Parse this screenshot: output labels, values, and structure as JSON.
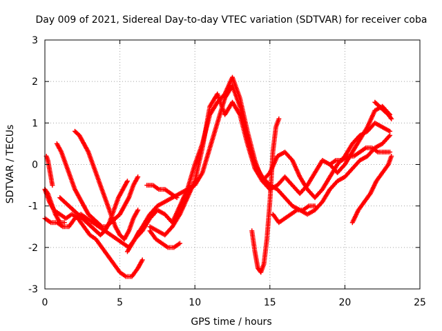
{
  "chart_data": {
    "type": "scatter",
    "title": "Day 009 of 2021, Sidereal Day-to-day VTEC variation (SDTVAR) for receiver coba",
    "xlabel": "GPS time / hours",
    "ylabel": "SDTVAR / TECUs",
    "xlim": [
      0,
      25
    ],
    "ylim": [
      -3,
      3
    ],
    "xticks": [
      "0",
      "5",
      "10",
      "15",
      "20",
      "25"
    ],
    "yticks": [
      "-3",
      "-2",
      "-1",
      "0",
      "1",
      "2",
      "3"
    ],
    "grid": true,
    "marker": "+",
    "color": "#ff0000",
    "series": [
      {
        "x": [
          0.0,
          0.3,
          0.6,
          1.0,
          1.4,
          1.8,
          2.2,
          2.6,
          3.0,
          3.4,
          3.8,
          4.2,
          4.6,
          5.0,
          5.4,
          5.8,
          6.2,
          6.5
        ],
        "y": [
          -0.6,
          -0.9,
          -1.1,
          -1.2,
          -1.3,
          -1.2,
          -1.3,
          -1.5,
          -1.7,
          -1.8,
          -2.0,
          -2.2,
          -2.4,
          -2.6,
          -2.7,
          -2.7,
          -2.5,
          -2.3
        ]
      },
      {
        "x": [
          0.0,
          0.4,
          0.8,
          1.2,
          1.6,
          2.0,
          2.4,
          2.8,
          3.2,
          3.6,
          4.0,
          4.4,
          4.8,
          5.2,
          5.6,
          6.0,
          6.3
        ],
        "y": [
          -1.3,
          -1.4,
          -1.4,
          -1.5,
          -1.5,
          -1.3,
          -1.2,
          -1.3,
          -1.4,
          -1.5,
          -1.6,
          -1.7,
          -1.8,
          -1.9,
          -2.0,
          -1.8,
          -1.6
        ]
      },
      {
        "x": [
          0.0,
          0.2,
          0.4,
          0.7,
          1.0,
          1.3
        ],
        "y": [
          -0.6,
          -0.7,
          -0.9,
          -1.2,
          -1.4,
          -1.4
        ]
      },
      {
        "x": [
          0.1,
          0.2,
          0.3,
          0.4,
          0.5
        ],
        "y": [
          0.2,
          0.1,
          -0.1,
          -0.3,
          -0.5
        ]
      },
      {
        "x": [
          0.8,
          1.1,
          1.4,
          1.7,
          2.0,
          2.3,
          2.6,
          2.9,
          3.2,
          3.5,
          3.8,
          4.1,
          4.4,
          4.7,
          5.0,
          5.3,
          5.6,
          5.9,
          6.2
        ],
        "y": [
          0.5,
          0.3,
          0.0,
          -0.3,
          -0.6,
          -0.8,
          -1.0,
          -1.2,
          -1.3,
          -1.4,
          -1.5,
          -1.5,
          -1.4,
          -1.3,
          -1.2,
          -1.0,
          -0.8,
          -0.5,
          -0.3
        ]
      },
      {
        "x": [
          2.0,
          2.3,
          2.6,
          2.9,
          3.2,
          3.5,
          3.8,
          4.1,
          4.4,
          4.7,
          5.0,
          5.3,
          5.6,
          5.9,
          6.2
        ],
        "y": [
          0.8,
          0.7,
          0.5,
          0.3,
          0.0,
          -0.3,
          -0.6,
          -0.9,
          -1.2,
          -1.5,
          -1.7,
          -1.8,
          -1.6,
          -1.3,
          -1.1
        ]
      },
      {
        "x": [
          1.0,
          1.3,
          1.6,
          1.9,
          2.2,
          2.5,
          2.8,
          3.1,
          3.4,
          3.7,
          4.0,
          4.3,
          4.6,
          4.9,
          5.2,
          5.5
        ],
        "y": [
          -0.8,
          -0.9,
          -1.0,
          -1.1,
          -1.2,
          -1.3,
          -1.4,
          -1.5,
          -1.6,
          -1.7,
          -1.6,
          -1.4,
          -1.1,
          -0.8,
          -0.6,
          -0.4
        ]
      },
      {
        "x": [
          5.5,
          6.0,
          6.5,
          7.0,
          7.5,
          8.0,
          8.5,
          9.0,
          9.5,
          10.0,
          10.5,
          11.0,
          11.5,
          12.0,
          12.5,
          13.0,
          13.5,
          14.0,
          14.5,
          15.0,
          15.5,
          16.0,
          16.5,
          17.0,
          17.5,
          18.0,
          18.5,
          19.0,
          19.5,
          20.0,
          20.5,
          21.0,
          21.5,
          22.0,
          22.5,
          23.0
        ],
        "y": [
          -2.1,
          -1.8,
          -1.5,
          -1.2,
          -1.0,
          -0.9,
          -0.8,
          -0.7,
          -0.6,
          -0.5,
          -0.2,
          0.4,
          1.0,
          1.6,
          1.9,
          1.4,
          0.6,
          0.0,
          -0.3,
          -0.5,
          -0.6,
          -0.8,
          -1.0,
          -1.1,
          -1.2,
          -1.1,
          -0.9,
          -0.6,
          -0.4,
          -0.3,
          -0.1,
          0.1,
          0.2,
          0.4,
          0.5,
          0.7
        ]
      },
      {
        "x": [
          6.0,
          6.5,
          7.0,
          7.5,
          8.0,
          8.5,
          9.0,
          9.5,
          10.0,
          10.5,
          11.0,
          11.5,
          12.0,
          12.5,
          13.0,
          13.5,
          14.0,
          14.5,
          15.0,
          15.5,
          16.0,
          16.5,
          17.0,
          17.5,
          18.0,
          18.5,
          19.0,
          19.5,
          20.0,
          20.5,
          21.0,
          21.5,
          22.0,
          22.5,
          23.0
        ],
        "y": [
          -1.8,
          -1.6,
          -1.3,
          -1.1,
          -1.2,
          -1.4,
          -1.0,
          -0.6,
          0.0,
          0.5,
          1.2,
          1.5,
          1.7,
          2.1,
          1.6,
          0.8,
          0.1,
          -0.4,
          -0.2,
          0.2,
          0.3,
          0.1,
          -0.3,
          -0.6,
          -0.8,
          -0.6,
          -0.3,
          0.0,
          0.2,
          0.5,
          0.7,
          0.8,
          1.0,
          0.9,
          0.8
        ]
      },
      {
        "x": [
          7.0,
          7.5,
          8.0,
          8.5,
          9.0,
          9.5,
          10.0,
          10.5,
          11.0,
          11.5,
          12.0,
          12.5,
          13.0,
          13.5,
          14.0,
          14.5,
          15.0,
          15.5,
          16.0,
          16.5,
          17.0,
          17.5,
          18.0,
          18.5,
          19.0,
          19.5,
          20.0,
          20.5,
          21.0,
          21.5,
          22.0,
          22.5,
          23.0
        ],
        "y": [
          -1.5,
          -1.6,
          -1.7,
          -1.5,
          -1.2,
          -0.8,
          -0.4,
          0.4,
          1.4,
          1.7,
          1.2,
          1.5,
          1.2,
          0.5,
          -0.1,
          -0.4,
          -0.6,
          -0.5,
          -0.3,
          -0.5,
          -0.7,
          -0.5,
          -0.2,
          0.1,
          0.0,
          -0.2,
          0.0,
          0.3,
          0.6,
          0.9,
          1.3,
          1.4,
          1.2
        ]
      },
      {
        "x": [
          7.0,
          7.4,
          7.8,
          8.2,
          8.6,
          9.0
        ],
        "y": [
          -1.6,
          -1.8,
          -1.9,
          -2.0,
          -2.0,
          -1.9
        ]
      },
      {
        "x": [
          6.8,
          7.2,
          7.6,
          8.0,
          8.4,
          8.8
        ],
        "y": [
          -0.5,
          -0.5,
          -0.6,
          -0.6,
          -0.7,
          -0.8
        ]
      },
      {
        "x": [
          13.8,
          14.0,
          14.2,
          14.4,
          14.6,
          14.8,
          15.0,
          15.2,
          15.4,
          15.6
        ],
        "y": [
          -1.6,
          -2.1,
          -2.5,
          -2.6,
          -2.4,
          -1.8,
          -0.9,
          0.3,
          0.9,
          1.1
        ]
      },
      {
        "x": [
          15.2,
          15.6,
          16.0,
          16.4,
          16.8,
          17.2,
          17.6,
          18.0
        ],
        "y": [
          -1.2,
          -1.4,
          -1.3,
          -1.2,
          -1.1,
          -1.1,
          -1.0,
          -1.0
        ]
      },
      {
        "x": [
          20.5,
          20.9,
          21.3,
          21.7,
          22.1,
          22.5,
          22.9,
          23.1
        ],
        "y": [
          -1.4,
          -1.1,
          -0.9,
          -0.7,
          -0.4,
          -0.2,
          0.0,
          0.2
        ]
      },
      {
        "x": [
          19.0,
          19.4,
          19.8,
          20.2,
          20.6,
          21.0,
          21.4,
          21.8,
          22.2,
          22.6,
          23.0
        ],
        "y": [
          0.0,
          0.1,
          0.1,
          0.2,
          0.2,
          0.3,
          0.4,
          0.4,
          0.3,
          0.3,
          0.3
        ]
      },
      {
        "x": [
          22.0,
          22.3,
          22.6,
          22.9,
          23.1
        ],
        "y": [
          1.5,
          1.4,
          1.3,
          1.2,
          1.1
        ]
      }
    ]
  }
}
